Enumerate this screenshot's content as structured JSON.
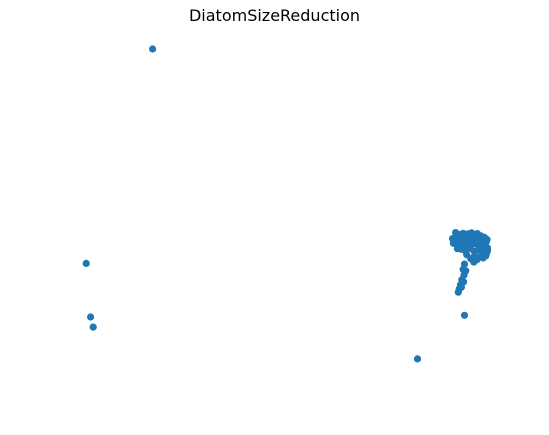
{
  "chart_data": {
    "type": "scatter",
    "title": "DiatomSizeReduction",
    "xlabel": "",
    "ylabel": "",
    "axes_visible": false,
    "grid": false,
    "marker_color": "#1f77b4",
    "xlim": [
      0,
      100
    ],
    "ylim": [
      0,
      100
    ],
    "points": [
      [
        20.0,
        100.0
      ],
      [
        5.0,
        36.0
      ],
      [
        6.0,
        20.0
      ],
      [
        6.6,
        17.0
      ],
      [
        79.8,
        7.5
      ],
      [
        90.4,
        20.5
      ],
      [
        87.7,
        43.4
      ],
      [
        88.2,
        43.5
      ],
      [
        89.0,
        43.2
      ],
      [
        89.6,
        43.8
      ],
      [
        90.3,
        43.4
      ],
      [
        91.0,
        43.0
      ],
      [
        91.7,
        43.6
      ],
      [
        92.4,
        43.1
      ],
      [
        93.1,
        43.4
      ],
      [
        93.8,
        43.0
      ],
      [
        94.5,
        42.6
      ],
      [
        95.3,
        42.4
      ],
      [
        87.9,
        42.0
      ],
      [
        88.6,
        41.8
      ],
      [
        89.3,
        42.3
      ],
      [
        90.0,
        42.1
      ],
      [
        90.8,
        41.6
      ],
      [
        91.5,
        42.0
      ],
      [
        92.2,
        41.7
      ],
      [
        92.9,
        41.9
      ],
      [
        93.6,
        41.5
      ],
      [
        94.3,
        41.2
      ],
      [
        95.0,
        41.0
      ],
      [
        95.6,
        40.6
      ],
      [
        88.4,
        45.2
      ],
      [
        89.2,
        44.6
      ],
      [
        90.1,
        45.0
      ],
      [
        91.2,
        44.8
      ],
      [
        92.0,
        45.1
      ],
      [
        93.3,
        44.9
      ],
      [
        94.1,
        44.2
      ],
      [
        94.9,
        43.8
      ],
      [
        95.5,
        43.1
      ],
      [
        88.8,
        40.4
      ],
      [
        89.7,
        40.2
      ],
      [
        90.6,
        39.8
      ],
      [
        91.6,
        40.5
      ],
      [
        92.6,
        39.6
      ],
      [
        93.5,
        40.1
      ],
      [
        94.4,
        39.4
      ],
      [
        95.4,
        39.0
      ],
      [
        95.6,
        39.8
      ],
      [
        90.9,
        38.6
      ],
      [
        91.8,
        37.4
      ],
      [
        92.7,
        38.3
      ],
      [
        93.2,
        37.1
      ],
      [
        94.0,
        38.1
      ],
      [
        94.6,
        37.6
      ],
      [
        95.2,
        38.2
      ],
      [
        92.5,
        36.4
      ],
      [
        90.4,
        35.8
      ],
      [
        90.1,
        34.2
      ],
      [
        90.3,
        32.5
      ],
      [
        89.8,
        31.1
      ],
      [
        89.5,
        29.6
      ],
      [
        89.2,
        28.4
      ],
      [
        89.0,
        27.4
      ],
      [
        90.7,
        33.8
      ],
      [
        90.2,
        30.5
      ],
      [
        89.7,
        28.9
      ]
    ]
  }
}
